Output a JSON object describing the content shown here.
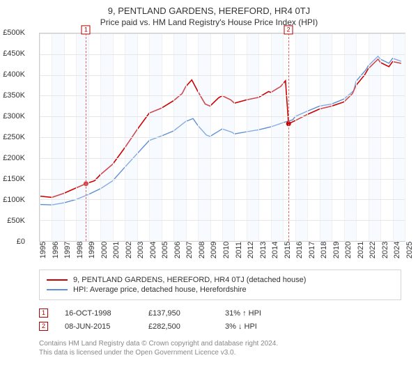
{
  "title": "9, PENTLAND GARDENS, HEREFORD, HR4 0TJ",
  "subtitle": "Price paid vs. HM Land Registry's House Price Index (HPI)",
  "chart": {
    "type": "line",
    "ylim": [
      0,
      500000
    ],
    "ytick_step": 50000,
    "ytick_prefix": "£",
    "yticks": [
      "£0",
      "£50K",
      "£100K",
      "£150K",
      "£200K",
      "£250K",
      "£300K",
      "£350K",
      "£400K",
      "£450K",
      "£500K"
    ],
    "xlim": [
      1995,
      2025
    ],
    "xticks": [
      1995,
      1996,
      1997,
      1998,
      1999,
      2000,
      2001,
      2002,
      2003,
      2004,
      2005,
      2006,
      2007,
      2008,
      2009,
      2010,
      2011,
      2012,
      2013,
      2014,
      2015,
      2016,
      2017,
      2018,
      2019,
      2020,
      2021,
      2022,
      2023,
      2024,
      2025
    ],
    "grid_color": "#e6e6e6",
    "alt_band_color": "rgba(230,240,255,0.3)",
    "series": [
      {
        "name": "property",
        "label": "9, PENTLAND GARDENS, HEREFORD, HR4 0TJ (detached house)",
        "color": "#cc0000",
        "width": 1.6,
        "points": [
          [
            1995,
            108000
          ],
          [
            1996,
            105000
          ],
          [
            1997,
            115000
          ],
          [
            1998,
            128000
          ],
          [
            1998.8,
            137950
          ],
          [
            1999.5,
            145000
          ],
          [
            2000,
            160000
          ],
          [
            2001,
            185000
          ],
          [
            2002,
            225000
          ],
          [
            2003,
            268000
          ],
          [
            2004,
            308000
          ],
          [
            2005,
            320000
          ],
          [
            2006,
            338000
          ],
          [
            2006.7,
            355000
          ],
          [
            2007,
            372000
          ],
          [
            2007.5,
            388000
          ],
          [
            2008,
            360000
          ],
          [
            2008.6,
            330000
          ],
          [
            2009,
            325000
          ],
          [
            2009.7,
            345000
          ],
          [
            2010,
            350000
          ],
          [
            2010.7,
            340000
          ],
          [
            2011,
            332000
          ],
          [
            2012,
            340000
          ],
          [
            2013,
            346000
          ],
          [
            2013.8,
            360000
          ],
          [
            2014,
            358000
          ],
          [
            2014.8,
            372000
          ],
          [
            2015.2,
            386000
          ],
          [
            2015.45,
            282500
          ],
          [
            2016,
            290000
          ],
          [
            2017,
            305000
          ],
          [
            2018,
            318000
          ],
          [
            2019,
            325000
          ],
          [
            2020,
            335000
          ],
          [
            2020.7,
            355000
          ],
          [
            2021,
            375000
          ],
          [
            2021.7,
            400000
          ],
          [
            2022,
            415000
          ],
          [
            2022.8,
            438000
          ],
          [
            2023,
            430000
          ],
          [
            2023.7,
            420000
          ],
          [
            2024,
            432000
          ],
          [
            2024.7,
            428000
          ]
        ]
      },
      {
        "name": "hpi",
        "label": "HPI: Average price, detached house, Herefordshire",
        "color": "#5b8fd6",
        "width": 1.4,
        "points": [
          [
            1995,
            88000
          ],
          [
            1996,
            87000
          ],
          [
            1997,
            92000
          ],
          [
            1998,
            100000
          ],
          [
            1999,
            112000
          ],
          [
            2000,
            126000
          ],
          [
            2001,
            145000
          ],
          [
            2002,
            178000
          ],
          [
            2003,
            210000
          ],
          [
            2004,
            242000
          ],
          [
            2005,
            253000
          ],
          [
            2006,
            265000
          ],
          [
            2007,
            288000
          ],
          [
            2007.6,
            295000
          ],
          [
            2008,
            278000
          ],
          [
            2008.7,
            255000
          ],
          [
            2009,
            252000
          ],
          [
            2010,
            270000
          ],
          [
            2010.8,
            262000
          ],
          [
            2011,
            258000
          ],
          [
            2012,
            263000
          ],
          [
            2013,
            268000
          ],
          [
            2014,
            275000
          ],
          [
            2015,
            285000
          ],
          [
            2015.8,
            292000
          ],
          [
            2016,
            300000
          ],
          [
            2017,
            313000
          ],
          [
            2018,
            325000
          ],
          [
            2019,
            330000
          ],
          [
            2020,
            342000
          ],
          [
            2020.8,
            362000
          ],
          [
            2021,
            385000
          ],
          [
            2021.8,
            412000
          ],
          [
            2022,
            422000
          ],
          [
            2022.8,
            445000
          ],
          [
            2023,
            438000
          ],
          [
            2023.7,
            428000
          ],
          [
            2024,
            440000
          ],
          [
            2024.7,
            433000
          ]
        ]
      }
    ],
    "markers": [
      {
        "n": "1",
        "x": 1998.8,
        "y": 137950
      },
      {
        "n": "2",
        "x": 2015.45,
        "y": 282500
      }
    ]
  },
  "legend": {
    "items": [
      {
        "color": "#cc0000",
        "label": "9, PENTLAND GARDENS, HEREFORD, HR4 0TJ (detached house)"
      },
      {
        "color": "#5b8fd6",
        "label": "HPI: Average price, detached house, Herefordshire"
      }
    ]
  },
  "sales": [
    {
      "n": "1",
      "date": "16-OCT-1998",
      "price": "£137,950",
      "diff": "31% ↑ HPI"
    },
    {
      "n": "2",
      "date": "08-JUN-2015",
      "price": "£282,500",
      "diff": "3% ↓ HPI"
    }
  ],
  "footer": {
    "line1": "Contains HM Land Registry data © Crown copyright and database right 2024.",
    "line2": "This data is licensed under the Open Government Licence v3.0."
  }
}
